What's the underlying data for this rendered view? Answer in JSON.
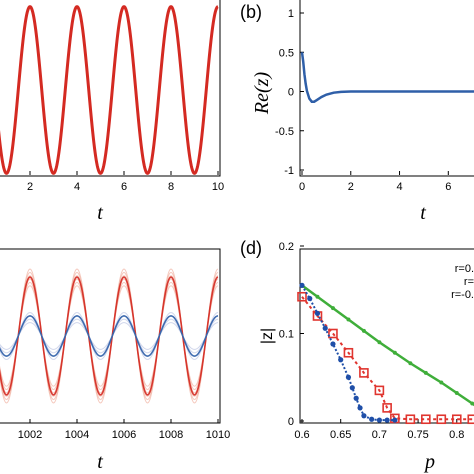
{
  "colors": {
    "red": "#d42a22",
    "blue": "#2f5fa8",
    "green": "#3fae3a",
    "salmon": "#e98a72",
    "lightblue": "#9aa7d4",
    "marker_blue": "#1f4fa8",
    "marker_red": "#e0352f"
  },
  "chart_data": [
    {
      "id": "a",
      "type": "line",
      "panel_label": "",
      "xlabel": "t",
      "ylabel": "",
      "xlim": [
        0.6,
        10
      ],
      "ylim": [
        -1.2,
        1.2
      ],
      "xticks": [
        "2",
        "4",
        "6",
        "8",
        "10"
      ],
      "yticks": [],
      "series": [
        {
          "color": "#d42a22",
          "function": "cos(pi*t)",
          "t_range": [
            0.6,
            10
          ]
        }
      ]
    },
    {
      "id": "b",
      "type": "line",
      "panel_label": "(b)",
      "xlabel": "t",
      "ylabel": "Re(z)",
      "xlim": [
        0,
        7.3
      ],
      "ylim": [
        -1.15,
        1.15
      ],
      "xticks": [
        "0",
        "2",
        "4",
        "6"
      ],
      "yticks": [
        "1",
        "0.5",
        "0",
        "-0.5",
        "-1"
      ],
      "series": [
        {
          "color": "#2f5fa8",
          "x": [
            0,
            0.05,
            0.1,
            0.15,
            0.2,
            0.3,
            0.4,
            0.5,
            0.6,
            0.8,
            1.0,
            1.3,
            1.6,
            2.0,
            3.0,
            4.0,
            5.0,
            6.0,
            7.3
          ],
          "y": [
            0.5,
            0.38,
            0.22,
            0.1,
            0.01,
            -0.09,
            -0.13,
            -0.13,
            -0.11,
            -0.07,
            -0.04,
            -0.015,
            -0.005,
            0,
            0,
            0,
            0,
            0,
            0
          ]
        }
      ]
    },
    {
      "id": "c",
      "type": "line",
      "panel_label": "",
      "xlabel": "t",
      "ylabel": "",
      "xlim": [
        1000.6,
        1010
      ],
      "ylim": [
        -1.3,
        1.3
      ],
      "xticks": [
        "1002",
        "1004",
        "1006",
        "1008",
        "1010"
      ],
      "yticks": [],
      "series": [
        {
          "color": "#e98a72",
          "function": "A*cos(pi*t)",
          "amplitudes": [
            0.75,
            0.8,
            0.85,
            0.9,
            0.95,
            1.0
          ]
        },
        {
          "color": "#d42a22",
          "function": "A*cos(pi*t)",
          "amplitudes": [
            0.88
          ]
        },
        {
          "color": "#9aa7d4",
          "function": "A*cos(pi*t)",
          "amplitudes": [
            0.2,
            0.25,
            0.3,
            0.35
          ]
        },
        {
          "color": "#2f5fa8",
          "function": "A*cos(pi*t)",
          "amplitudes": [
            0.3
          ]
        }
      ]
    },
    {
      "id": "d",
      "type": "line",
      "panel_label": "(d)",
      "xlabel": "p",
      "ylabel": "|z|",
      "xlim": [
        0.6,
        0.83
      ],
      "ylim": [
        0,
        0.2
      ],
      "xticks": [
        "0.6",
        "0.65",
        "0.7",
        "0.75",
        "0.8"
      ],
      "yticks": [
        "0.2",
        "0.1",
        "0"
      ],
      "legend_entries": [
        "r=0.",
        "r=",
        "r=-0."
      ],
      "series": [
        {
          "color": "#3fae3a",
          "marker": "dot",
          "x": [
            0.6,
            0.62,
            0.64,
            0.66,
            0.68,
            0.7,
            0.72,
            0.74,
            0.76,
            0.78,
            0.8,
            0.82,
            0.83
          ],
          "y": [
            0.155,
            0.142,
            0.129,
            0.116,
            0.103,
            0.09,
            0.078,
            0.066,
            0.055,
            0.044,
            0.032,
            0.02,
            0.014
          ]
        },
        {
          "color": "#e0352f",
          "marker": "square",
          "x": [
            0.6,
            0.62,
            0.64,
            0.66,
            0.68,
            0.7,
            0.71,
            0.72,
            0.74,
            0.76,
            0.78,
            0.8,
            0.82
          ],
          "y": [
            0.142,
            0.12,
            0.1,
            0.078,
            0.055,
            0.035,
            0.015,
            0.003,
            0.002,
            0.002,
            0.002,
            0.002,
            0.002
          ]
        },
        {
          "color": "#1f4fa8",
          "marker": "dot",
          "x": [
            0.6,
            0.61,
            0.62,
            0.63,
            0.64,
            0.65,
            0.66,
            0.665,
            0.67,
            0.675,
            0.68,
            0.69,
            0.7,
            0.71,
            0.72
          ],
          "y": [
            0.155,
            0.14,
            0.123,
            0.106,
            0.088,
            0.07,
            0.05,
            0.038,
            0.026,
            0.015,
            0.006,
            0.002,
            0.001,
            0.001,
            0.001
          ]
        }
      ]
    }
  ]
}
